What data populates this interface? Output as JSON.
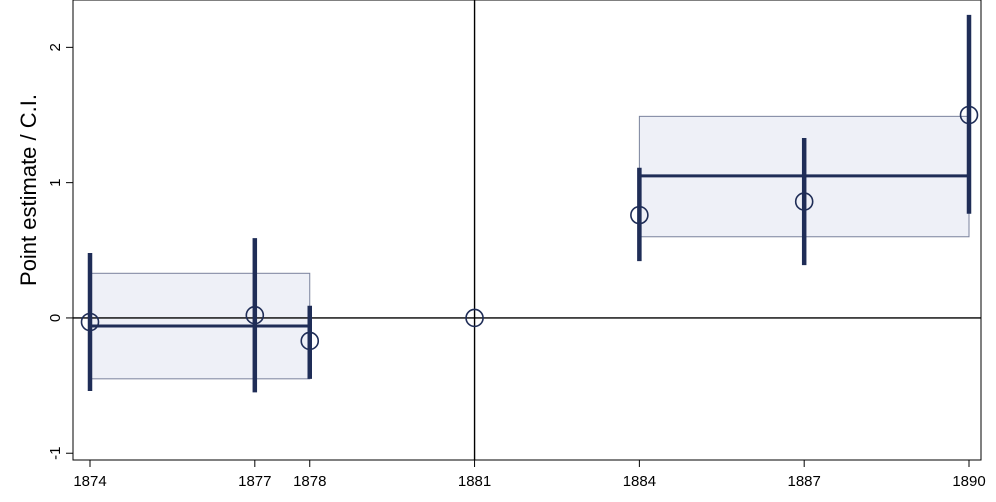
{
  "chart_data": {
    "type": "scatter",
    "title": "",
    "xlabel": "",
    "ylabel": "Point estimate / C.I.",
    "xlim": [
      1874,
      1890
    ],
    "ylim": [
      -1.05,
      2.35
    ],
    "x_ticks": [
      1874,
      1877,
      1878,
      1881,
      1884,
      1887,
      1890
    ],
    "y_ticks": [
      -1,
      0,
      1,
      2
    ],
    "grid": false,
    "reference_lines": {
      "horizontal": 0,
      "vertical": 1881
    },
    "points": [
      {
        "x": 1874,
        "estimate": -0.03,
        "ci_low": -0.54,
        "ci_high": 0.48
      },
      {
        "x": 1877,
        "estimate": 0.02,
        "ci_low": -0.55,
        "ci_high": 0.59
      },
      {
        "x": 1878,
        "estimate": -0.17,
        "ci_low": -0.45,
        "ci_high": 0.09
      },
      {
        "x": 1881,
        "estimate": 0.0,
        "ci_low": null,
        "ci_high": null
      },
      {
        "x": 1884,
        "estimate": 0.76,
        "ci_low": 0.42,
        "ci_high": 1.11
      },
      {
        "x": 1887,
        "estimate": 0.86,
        "ci_low": 0.39,
        "ci_high": 1.33
      },
      {
        "x": 1890,
        "estimate": 1.5,
        "ci_low": 0.77,
        "ci_high": 2.24
      }
    ],
    "pooled_periods": [
      {
        "x_start": 1874,
        "x_end": 1878,
        "estimate": -0.06,
        "ci_low": -0.45,
        "ci_high": 0.33
      },
      {
        "x_start": 1884,
        "x_end": 1890,
        "estimate": 1.05,
        "ci_low": 0.6,
        "ci_high": 1.49
      }
    ],
    "colors": {
      "marker": "#1f2d57",
      "ci_bar": "#1f2d57",
      "pooled_line": "#1f2d57",
      "pooled_fill": "#eef0f7",
      "pooled_border": "#7a829c",
      "reference_line": "#000000"
    }
  }
}
